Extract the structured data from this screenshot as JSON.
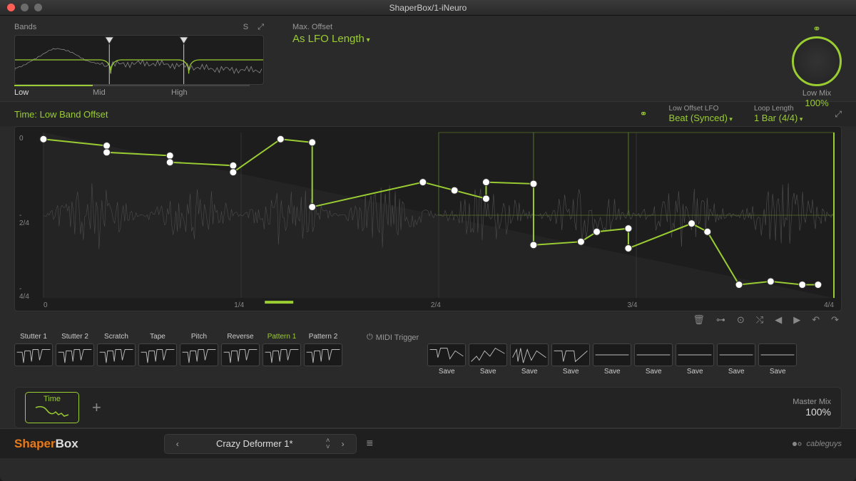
{
  "window": {
    "title": "ShaperBox/1-iNeuro"
  },
  "bands": {
    "label": "Bands",
    "icons": [
      "S",
      "⤢"
    ],
    "tabs": [
      "Low",
      "Mid",
      "High"
    ],
    "active_tab": 0,
    "crossover_positions": [
      0.38,
      0.68
    ],
    "crossover_color": "#9acd32"
  },
  "max_offset": {
    "label": "Max. Offset",
    "value": "As LFO Length"
  },
  "mix_knob": {
    "label": "Low Mix",
    "value": "100%",
    "ring_color": "#9acd32"
  },
  "editor": {
    "title": "Time: Low Band Offset",
    "lfo_mode": {
      "label": "Low Offset LFO",
      "value": "Beat (Synced)"
    },
    "loop_length": {
      "label": "Loop Length",
      "value": "1 Bar (4/4)"
    },
    "y_ticks": [
      {
        "label": "0",
        "pos": 0.04
      },
      {
        "label": "- 2/4",
        "pos": 0.5
      },
      {
        "label": "- 4/4",
        "pos": 0.94
      }
    ],
    "x_ticks": [
      "0",
      "1/4",
      "2/4",
      "3/4",
      "4/4"
    ],
    "grid_color": "#333333",
    "accent": "#9acd32",
    "breakpoints": [
      [
        0.0,
        0.04
      ],
      [
        0.08,
        0.08
      ],
      [
        0.08,
        0.12
      ],
      [
        0.16,
        0.14
      ],
      [
        0.16,
        0.18
      ],
      [
        0.24,
        0.2
      ],
      [
        0.24,
        0.24
      ],
      [
        0.3,
        0.04
      ],
      [
        0.34,
        0.06
      ],
      [
        0.34,
        0.45
      ],
      [
        0.48,
        0.3
      ],
      [
        0.52,
        0.35
      ],
      [
        0.56,
        0.4
      ],
      [
        0.56,
        0.3
      ],
      [
        0.62,
        0.31
      ],
      [
        0.62,
        0.68
      ],
      [
        0.68,
        0.66
      ],
      [
        0.7,
        0.6
      ],
      [
        0.74,
        0.58
      ],
      [
        0.74,
        0.7
      ],
      [
        0.82,
        0.55
      ],
      [
        0.84,
        0.6
      ],
      [
        0.88,
        0.92
      ],
      [
        0.92,
        0.9
      ],
      [
        0.96,
        0.92
      ],
      [
        0.98,
        0.92
      ]
    ],
    "waveform_amp": 0.35
  },
  "editor_toolbar": [
    "🗑",
    "⊶",
    "⊙",
    "⤭",
    "◀",
    "▶",
    "↶",
    "↷"
  ],
  "preset_effects": [
    {
      "label": "Stutter 1",
      "active": false
    },
    {
      "label": "Stutter 2",
      "active": false
    },
    {
      "label": "Scratch",
      "active": false
    },
    {
      "label": "Tape",
      "active": false
    },
    {
      "label": "Pitch",
      "active": false
    },
    {
      "label": "Reverse",
      "active": false
    },
    {
      "label": "Pattern 1",
      "active": true
    },
    {
      "label": "Pattern 2",
      "active": false
    }
  ],
  "midi_trigger_label": "MIDI Trigger",
  "save_slots": {
    "count": 9,
    "label": "Save"
  },
  "module": {
    "name": "Time",
    "color": "#9acd32"
  },
  "master_mix": {
    "label": "Master Mix",
    "value": "100%"
  },
  "footer": {
    "brand1": "Shaper",
    "brand2": "Box",
    "preset_name": "Crazy Deformer 1*",
    "company": "cableguys"
  },
  "colors": {
    "accent": "#9acd32",
    "bg": "#2a2a2a",
    "panel": "#1d1d1d",
    "text_muted": "#999999",
    "orange": "#e87a1a"
  }
}
